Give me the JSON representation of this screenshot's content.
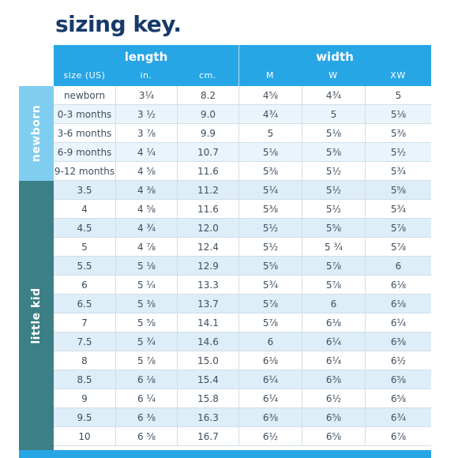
{
  "title": "sizing key.",
  "header": {
    "length_label": "length",
    "width_label": "width",
    "columns": [
      "size (US)",
      "in.",
      "cm.",
      "M",
      "W",
      "XW"
    ]
  },
  "groups": {
    "newborn": "newborn",
    "little_kid": "little kid"
  },
  "rows": [
    [
      "newborn",
      "3¼",
      "8.2",
      "4⅝",
      "4¾",
      "5"
    ],
    [
      "0-3 months",
      "3 ½",
      "9.0",
      "4¾",
      "5",
      "5⅛"
    ],
    [
      "3-6 months",
      "3 ⅞",
      "9.9",
      "5",
      "5⅛",
      "5⅜"
    ],
    [
      "6-9 months",
      "4 ¼",
      "10.7",
      "5⅛",
      "5⅜",
      "5½"
    ],
    [
      "9-12 months",
      "4 ⅝",
      "11.6",
      "5⅜",
      "5½",
      "5¾"
    ],
    [
      "3.5",
      "4 ⅜",
      "11.2",
      "5¼",
      "5½",
      "5⅝"
    ],
    [
      "4",
      "4 ⅝",
      "11.6",
      "5⅜",
      "5½",
      "5¾"
    ],
    [
      "4.5",
      "4 ¾",
      "12.0",
      "5½",
      "5⅝",
      "5⅞"
    ],
    [
      "5",
      "4 ⅞",
      "12.4",
      "5½",
      "5 ¾",
      "5⅞"
    ],
    [
      "5.5",
      "5 ⅛",
      "12.9",
      "5⅝",
      "5⅞",
      "6"
    ],
    [
      "6",
      "5 ¼",
      "13.3",
      "5¾",
      "5⅞",
      "6⅛"
    ],
    [
      "6.5",
      "5 ⅜",
      "13.7",
      "5⅞",
      "6",
      "6⅛"
    ],
    [
      "7",
      "5 ⅝",
      "14.1",
      "5⅞",
      "6⅛",
      "6¼"
    ],
    [
      "7.5",
      "5 ¾",
      "14.6",
      "6",
      "6¼",
      "6⅜"
    ],
    [
      "8",
      "5 ⅞",
      "15.0",
      "6⅛",
      "6¼",
      "6½"
    ],
    [
      "8.5",
      "6 ⅛",
      "15.4",
      "6¼",
      "6⅜",
      "6⅝"
    ],
    [
      "9",
      "6 ¼",
      "15.8",
      "6¼",
      "6½",
      "6⅝"
    ],
    [
      "9.5",
      "6 ⅜",
      "16.3",
      "6⅜",
      "6⅝",
      "6¾"
    ],
    [
      "10",
      "6 ⅝",
      "16.7",
      "6½",
      "6⅝",
      "6⅞"
    ]
  ]
}
